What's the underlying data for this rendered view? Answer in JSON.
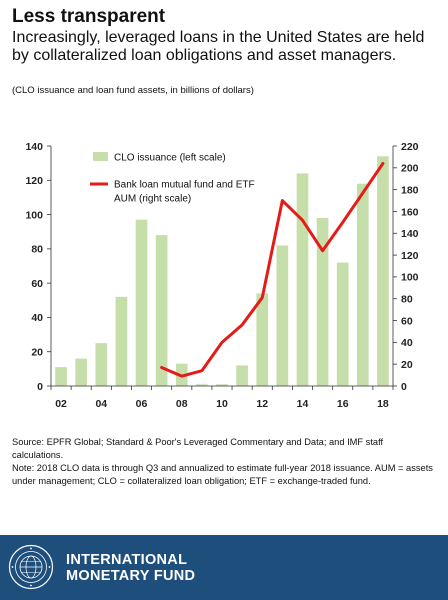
{
  "header": {
    "title": "Less transparent",
    "subtitle": "Increasingly, leveraged loans in the United States are held by collateralized loan obligations and asset managers.",
    "units": "(CLO issuance and loan fund assets, in billions of dollars)"
  },
  "chart_data": {
    "type": "bar+line",
    "x": [
      2002,
      2003,
      2004,
      2005,
      2006,
      2007,
      2008,
      2009,
      2010,
      2011,
      2012,
      2013,
      2014,
      2015,
      2016,
      2017,
      2018
    ],
    "x_tick_labels": [
      "02",
      "04",
      "06",
      "08",
      "10",
      "12",
      "14",
      "16",
      "18"
    ],
    "x_tick_years": [
      2002,
      2004,
      2006,
      2008,
      2010,
      2012,
      2014,
      2016,
      2018
    ],
    "left_axis": {
      "ylim": [
        0,
        140
      ],
      "ticks": [
        "0",
        "20",
        "40",
        "60",
        "80",
        "100",
        "120",
        "140"
      ]
    },
    "right_axis": {
      "ylim": [
        0,
        220
      ],
      "ticks": [
        "0",
        "20",
        "40",
        "60",
        "80",
        "100",
        "120",
        "140",
        "160",
        "180",
        "200",
        "220"
      ]
    },
    "series": [
      {
        "name": "CLO issuance (left scale)",
        "type": "bar",
        "axis": "left",
        "color": "#c6deaa",
        "values": [
          11,
          16,
          25,
          52,
          97,
          88,
          13,
          1,
          1,
          12,
          54,
          82,
          124,
          98,
          72,
          118,
          134
        ]
      },
      {
        "name": "Bank loan mutual fund and ETF AUM (right scale)",
        "type": "line",
        "axis": "right",
        "color": "#e41b17",
        "x": [
          2007,
          2008,
          2009,
          2010,
          2011,
          2012,
          2013,
          2014,
          2015,
          2016,
          2017,
          2018
        ],
        "values": [
          17,
          9,
          14,
          40,
          56,
          81,
          170,
          152,
          124,
          150,
          177,
          204
        ]
      }
    ],
    "legend": {
      "placement": "top-left",
      "bar_label": "CLO issuance (left scale)",
      "line_label_1": "Bank loan mutual fund and ETF",
      "line_label_2": "AUM (right scale)"
    }
  },
  "notes": {
    "source": "Source: EPFR Global; Standard & Poor's Leveraged Commentary and Data; and IMF staff calculations.",
    "note": "Note: 2018 CLO data is through Q3 and annualized to estimate full-year 2018 issuance. AUM = assets under management; CLO = collateralized loan obligation; ETF = exchange-traded fund."
  },
  "footer": {
    "org_line1": "INTERNATIONAL",
    "org_line2": "MONETARY FUND",
    "background": "#1e4e7c",
    "seal_icon": "imf-seal-icon"
  }
}
